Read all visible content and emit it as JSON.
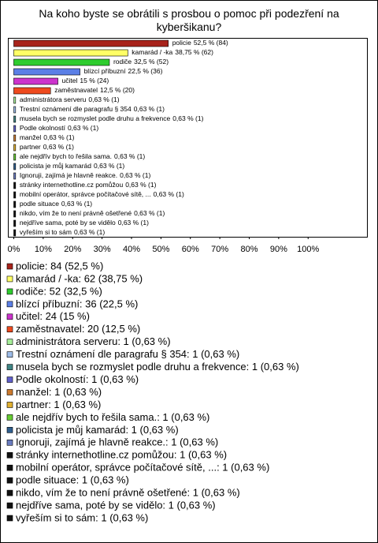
{
  "chart_data": {
    "type": "bar",
    "orientation": "horizontal",
    "title": "Na koho byste se obrátili s prosbou o pomoc při podezření na kyberšikanu?",
    "categories": [
      "policie",
      "kamarád / -ka",
      "rodiče",
      "blízcí příbuzní",
      "učitel",
      "zaměstnavatel",
      "administrátora serveru",
      "Trestní oznámení dle paragrafu § 354",
      "musela bych se rozmyslet podle druhu a frekvence",
      "Podle okolností",
      "manžel",
      "partner",
      "ale nejdřív bych to řešila sama.",
      "policista je můj kamarád",
      "Ignoruji, zajímá je hlavně reakce.",
      "stránky internethotline.cz pomůžou",
      "mobilní operátor, správce počítačové sítě, ...",
      "podle situace",
      "nikdo, vím že to není právně ošetřené",
      "nejdříve sama, poté by se vidělo",
      "vyřeším si to sám"
    ],
    "values": [
      52.5,
      38.75,
      32.5,
      22.5,
      15,
      12.5,
      0.63,
      0.63,
      0.63,
      0.63,
      0.63,
      0.63,
      0.63,
      0.63,
      0.63,
      0.63,
      0.63,
      0.63,
      0.63,
      0.63,
      0.63
    ],
    "value_labels": [
      "52,5 % (84)",
      "38,75 % (62)",
      "32,5 % (52)",
      "22,5 % (36)",
      "15 % (24)",
      "12,5 % (20)",
      "0,63 % (1)",
      "0,63 % (1)",
      "0,63 % (1)",
      "0,63 % (1)",
      "0,63 % (1)",
      "0,63 % (1)",
      "0,63 % (1)",
      "0,63 % (1)",
      "0,63 % (1)",
      "0,63 % (1)",
      "0,63 % (1)",
      "0,63 % (1)",
      "0,63 % (1)",
      "0,63 % (1)",
      "0,63 % (1)"
    ],
    "colors": [
      "#a8231b",
      "#ffff66",
      "#2ecc2e",
      "#5b7fe6",
      "#cc33cc",
      "#ee4a1e",
      "#a6ee99",
      "#9dbce8",
      "#3f8585",
      "#6060cc",
      "#cc7a2e",
      "#e0b030",
      "#66cc33",
      "#2f5f8f",
      "#6a7cc0",
      "#111111",
      "#111111",
      "#111111",
      "#111111",
      "#111111",
      "#111111"
    ],
    "legend_labels": [
      "policie: 84 (52,5 %)",
      "kamarád / -ka: 62 (38,75 %)",
      "rodiče: 52 (32,5 %)",
      "blízcí příbuzní: 36 (22,5 %)",
      "učitel: 24 (15 %)",
      "zaměstnavatel: 20 (12,5 %)",
      "administrátora serveru: 1 (0,63 %)",
      "Trestní oznámení dle paragrafu § 354: 1 (0,63 %)",
      "musela bych se rozmyslet podle druhu a frekvence: 1 (0,63 %)",
      "Podle okolností: 1 (0,63 %)",
      "manžel: 1 (0,63 %)",
      "partner: 1 (0,63 %)",
      "ale nejdřív bych to řešila sama.: 1 (0,63 %)",
      "policista je můj kamarád: 1 (0,63 %)",
      "Ignoruji, zajímá je hlavně reakce.: 1 (0,63 %)",
      "stránky internethotline.cz pomůžou: 1 (0,63 %)",
      "mobilní operátor, správce počítačové sítě, ...: 1 (0,63 %)",
      "podle situace: 1 (0,63 %)",
      "nikdo, vím že to není právně ošetřené: 1 (0,63 %)",
      "nejdříve sama, poté by se vidělo: 1 (0,63 %)",
      "vyřeším si to sám: 1 (0,63 %)"
    ],
    "xlim": [
      -2,
      120
    ],
    "xticks": [
      {
        "value": 0,
        "label": "0%"
      },
      {
        "value": 10,
        "label": "10%"
      },
      {
        "value": 20,
        "label": "20%"
      },
      {
        "value": 30,
        "label": "30%"
      },
      {
        "value": 40,
        "label": "40%"
      },
      {
        "value": 50,
        "label": "50%"
      },
      {
        "value": 60,
        "label": "60%"
      },
      {
        "value": 70,
        "label": "70%"
      },
      {
        "value": 80,
        "label": "80%"
      },
      {
        "value": 90,
        "label": "90%"
      },
      {
        "value": 100,
        "label": "100%"
      }
    ]
  }
}
